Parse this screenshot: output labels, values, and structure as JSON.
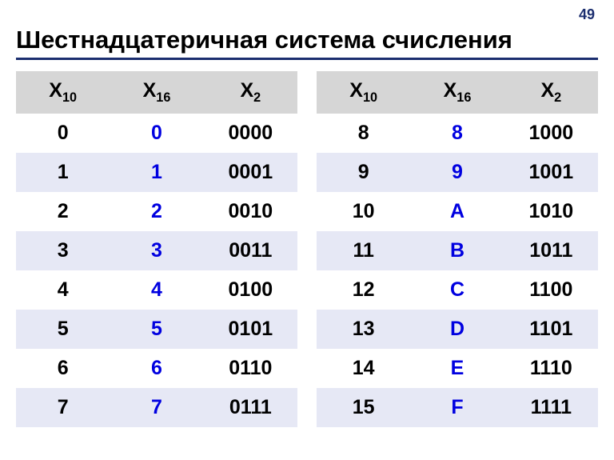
{
  "page_number": "49",
  "title": "Шестнадцатеричная система счисления",
  "header": {
    "base": "X",
    "sub10": "10",
    "sub16": "16",
    "sub2": "2"
  },
  "tables": {
    "left": {
      "rows": [
        {
          "dec": "0",
          "hex": "0",
          "bin": "0000"
        },
        {
          "dec": "1",
          "hex": "1",
          "bin": "0001"
        },
        {
          "dec": "2",
          "hex": "2",
          "bin": "0010"
        },
        {
          "dec": "3",
          "hex": "3",
          "bin": "0011"
        },
        {
          "dec": "4",
          "hex": "4",
          "bin": "0100"
        },
        {
          "dec": "5",
          "hex": "5",
          "bin": "0101"
        },
        {
          "dec": "6",
          "hex": "6",
          "bin": "0110"
        },
        {
          "dec": "7",
          "hex": "7",
          "bin": "0111"
        }
      ]
    },
    "right": {
      "rows": [
        {
          "dec": "8",
          "hex": "8",
          "bin": "1000"
        },
        {
          "dec": "9",
          "hex": "9",
          "bin": "1001"
        },
        {
          "dec": "10",
          "hex": "A",
          "bin": "1010"
        },
        {
          "dec": "11",
          "hex": "B",
          "bin": "1011"
        },
        {
          "dec": "12",
          "hex": "C",
          "bin": "1100"
        },
        {
          "dec": "13",
          "hex": "D",
          "bin": "1101"
        },
        {
          "dec": "14",
          "hex": "E",
          "bin": "1110"
        },
        {
          "dec": "15",
          "hex": "F",
          "bin": "1111"
        }
      ]
    }
  },
  "style": {
    "type": "table",
    "header_bg": "#d6d6d6",
    "stripe_bg": "#e6e8f5",
    "hex_color": "#0000e0",
    "text_color": "#000000",
    "title_underline_color": "#1b2e6f",
    "page_num_color": "#1b2e6f",
    "font_size_title": 31,
    "font_size_cell": 25,
    "font_weight": "bold"
  }
}
